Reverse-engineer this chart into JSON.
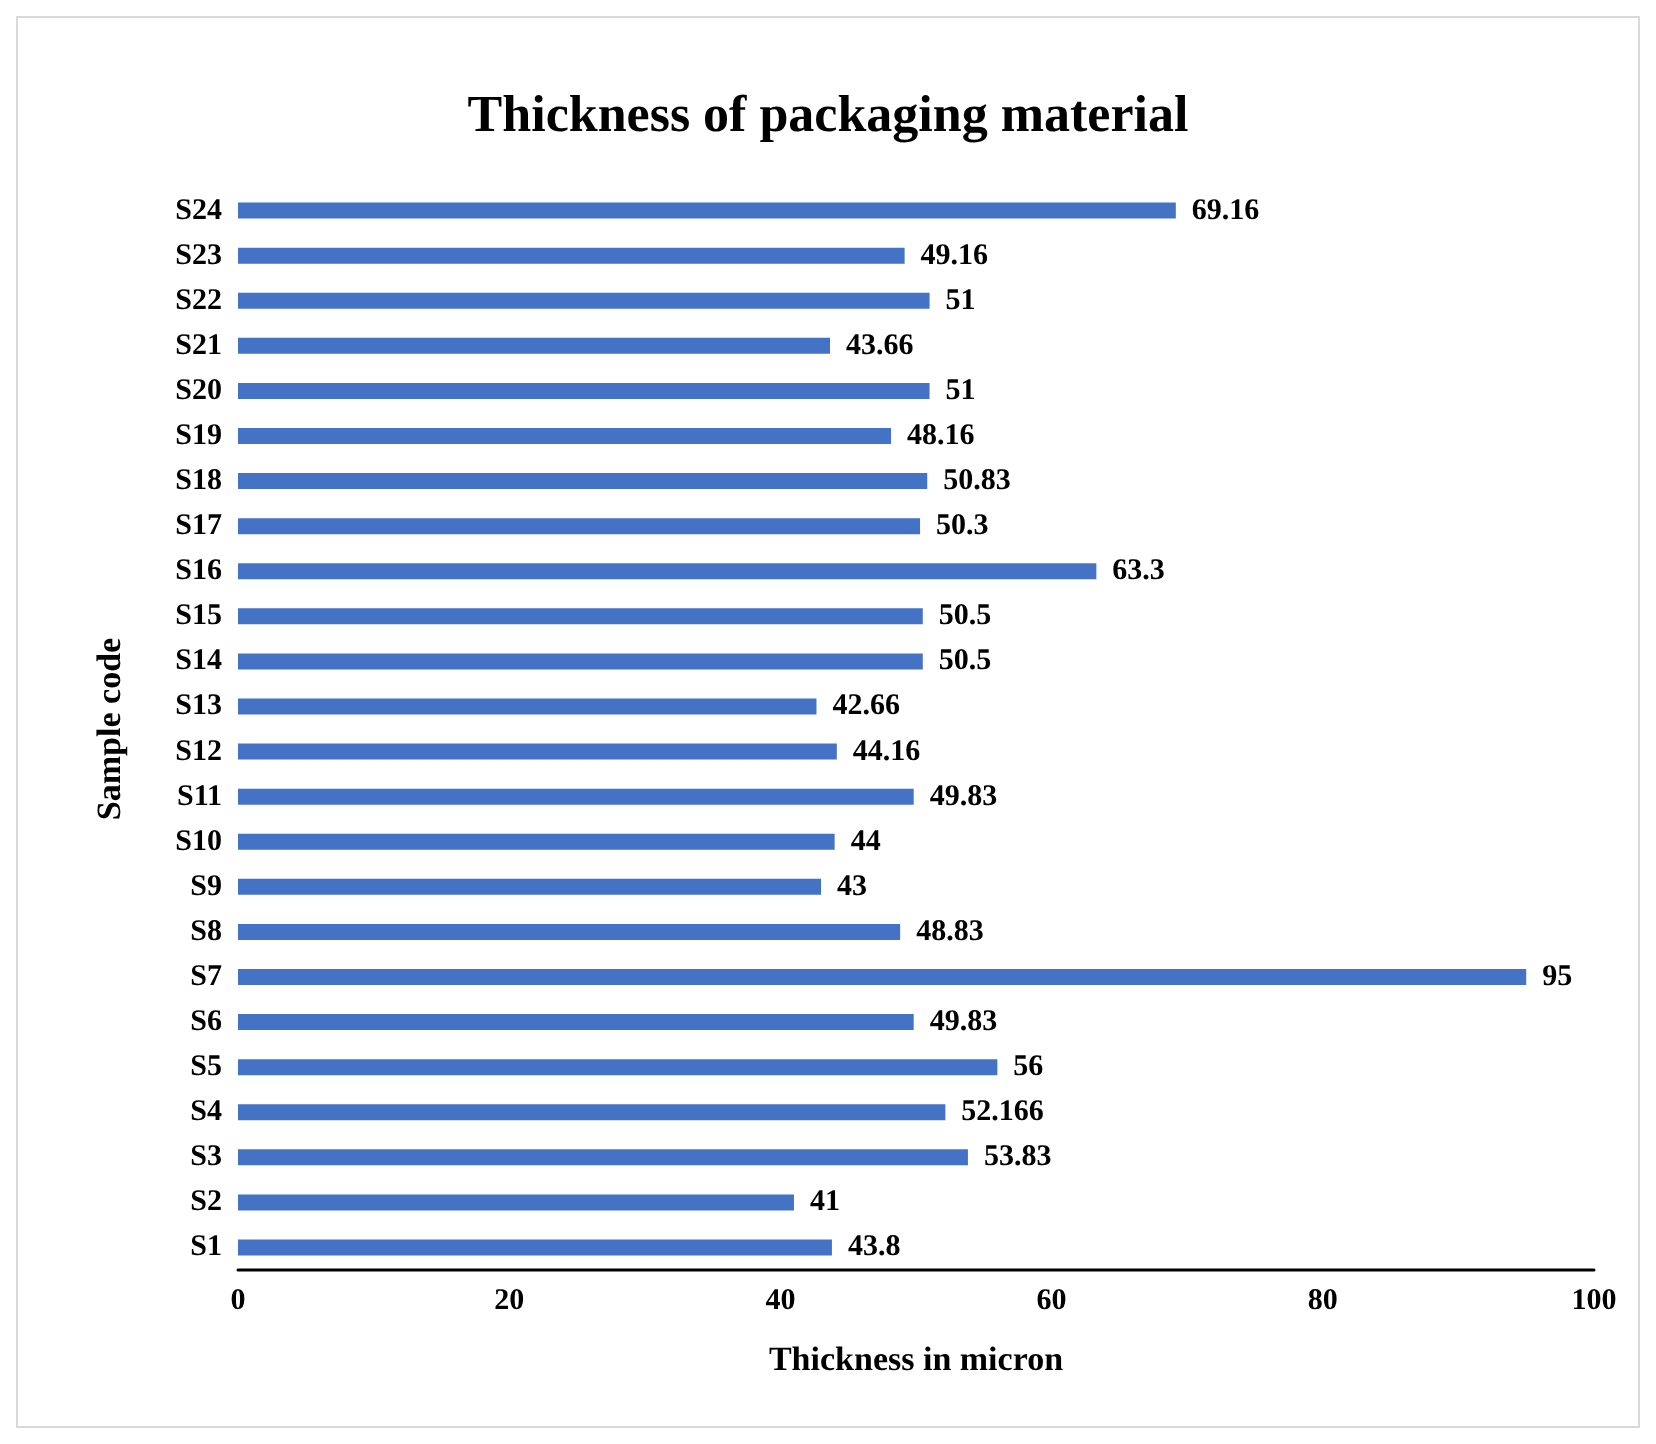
{
  "chart_data": {
    "type": "bar",
    "orientation": "horizontal",
    "title": "Thickness of packaging material",
    "xlabel": "Thickness in micron",
    "ylabel": "Sample code",
    "categories": [
      "S24",
      "S23",
      "S22",
      "S21",
      "S20",
      "S19",
      "S18",
      "S17",
      "S16",
      "S15",
      "S14",
      "S13",
      "S12",
      "S11",
      "S10",
      "S9",
      "S8",
      "S7",
      "S6",
      "S5",
      "S4",
      "S3",
      "S2",
      "S1"
    ],
    "values": [
      69.16,
      49.16,
      51,
      43.66,
      51,
      48.16,
      50.83,
      50.3,
      63.3,
      50.5,
      50.5,
      42.66,
      44.16,
      49.83,
      44,
      43,
      48.83,
      95,
      49.83,
      56,
      52.166,
      53.83,
      41,
      43.8
    ],
    "color": "#4472c4",
    "xlim": [
      0,
      100
    ],
    "xticks": [
      0,
      20,
      40,
      60,
      80,
      100
    ],
    "grid": false,
    "data_labels": true
  }
}
